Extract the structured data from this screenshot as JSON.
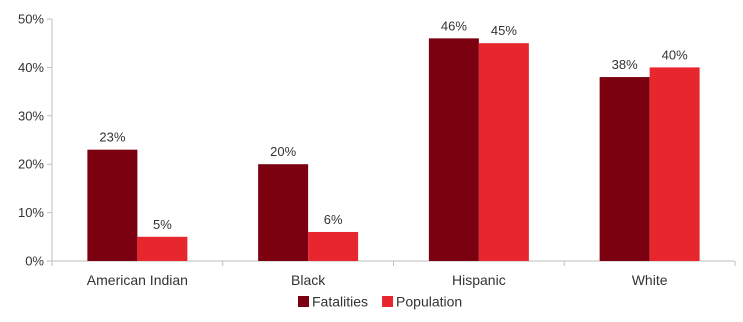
{
  "chart_data": {
    "type": "bar",
    "categories": [
      "American Indian",
      "Black",
      "Hispanic",
      "White"
    ],
    "series": [
      {
        "name": "Fatalities",
        "values": [
          23,
          20,
          46,
          38
        ],
        "labels": [
          "23%",
          "20%",
          "46%",
          "38%"
        ],
        "color": "#7b0010"
      },
      {
        "name": "Population",
        "values": [
          5,
          6,
          45,
          40
        ],
        "labels": [
          "5%",
          "6%",
          "45%",
          "40%"
        ],
        "color": "#e8262e"
      }
    ],
    "yticks": [
      0,
      10,
      20,
      30,
      40,
      50
    ],
    "ytick_labels": [
      "0%",
      "10%",
      "20%",
      "30%",
      "40%",
      "50%"
    ],
    "ylim": [
      0,
      50
    ],
    "grid": false,
    "legend": "bottom-center",
    "axis_color": "#bfbfbf"
  }
}
